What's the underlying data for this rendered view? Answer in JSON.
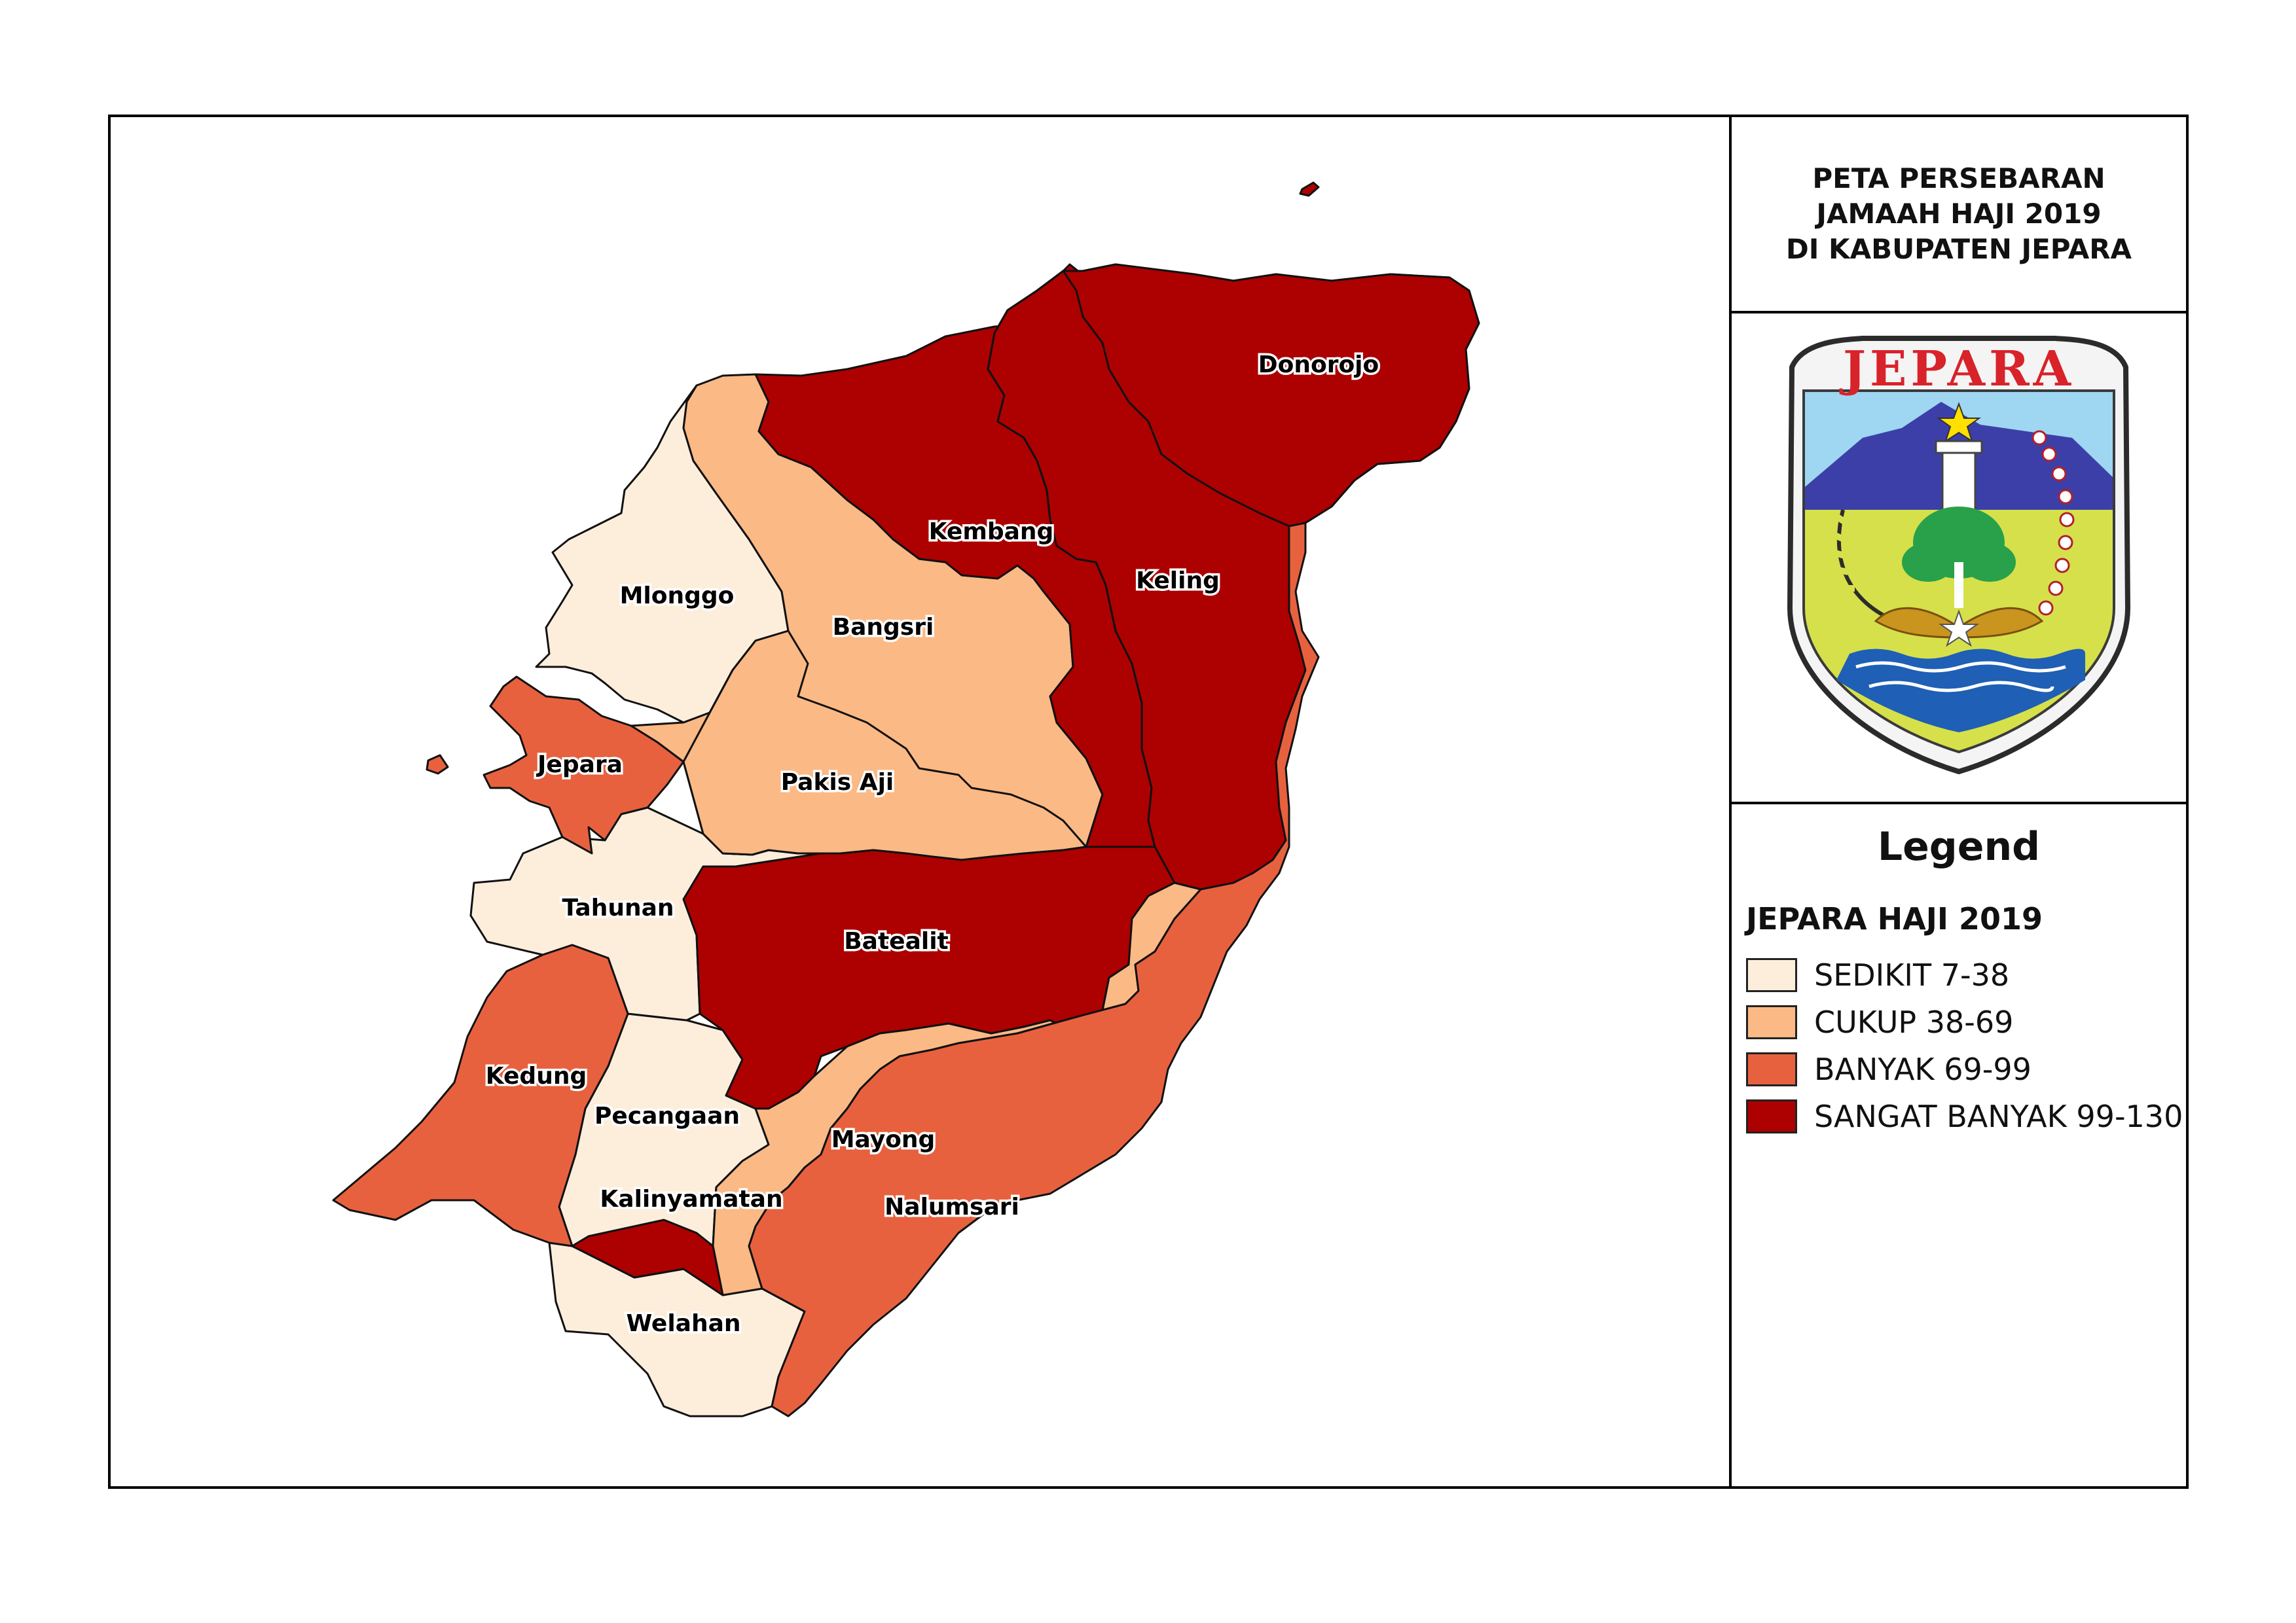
{
  "title": {
    "line1": "PETA PERSEBARAN",
    "line2": "JAMAAH HAJI 2019",
    "line3": "DI KABUPATEN JEPARA"
  },
  "logo": {
    "text": "JEPARA",
    "icon": "jepara-regency-coat-of-arms"
  },
  "legend": {
    "title": "Legend",
    "layer_name": "JEPARA HAJI 2019",
    "classes": [
      {
        "label": "SEDIKIT 7-38",
        "color": "#fdeedc"
      },
      {
        "label": "CUKUP 38-69",
        "color": "#fbb985"
      },
      {
        "label": "BANYAK 69-99",
        "color": "#e8613f"
      },
      {
        "label": "SANGAT BANYAK 99-130",
        "color": "#ad0000"
      }
    ]
  },
  "districts": [
    {
      "name": "Donorojo",
      "class": 3
    },
    {
      "name": "Kembang",
      "class": 3
    },
    {
      "name": "Keling",
      "class": 3
    },
    {
      "name": "Mlonggo",
      "class": 0
    },
    {
      "name": "Bangsri",
      "class": 1
    },
    {
      "name": "Jepara",
      "class": 2
    },
    {
      "name": "Pakis Aji",
      "class": 1
    },
    {
      "name": "Tahunan",
      "class": 0
    },
    {
      "name": "Batealit",
      "class": 3
    },
    {
      "name": "Kedung",
      "class": 2
    },
    {
      "name": "Pecangaan",
      "class": 0
    },
    {
      "name": "Mayong",
      "class": 1
    },
    {
      "name": "Kalinyamatan",
      "class": 3
    },
    {
      "name": "Nalumsari",
      "class": 2
    },
    {
      "name": "Welahan",
      "class": 0
    }
  ]
}
